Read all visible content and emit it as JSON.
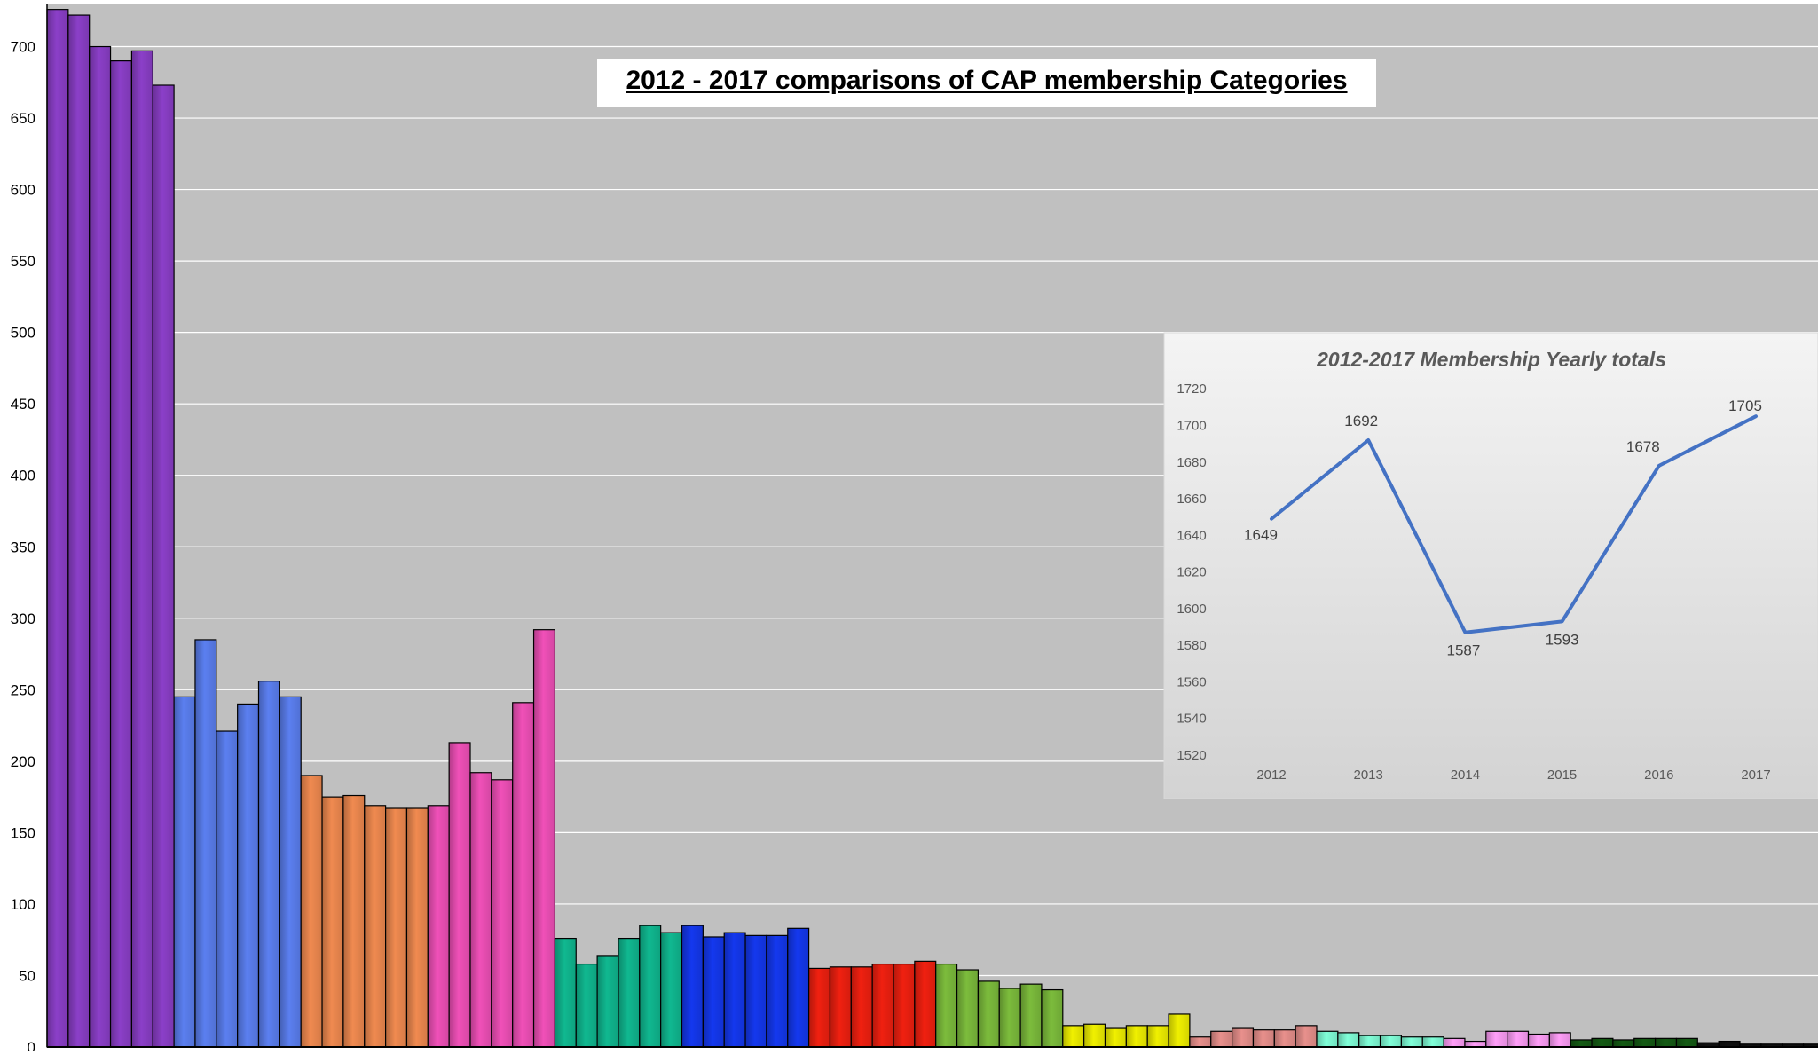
{
  "chart_data": [
    {
      "type": "bar",
      "title": "2012 - 2017 comparisons of CAP membership Categories",
      "xlabel": "",
      "ylabel": "",
      "ylim": [
        0,
        730
      ],
      "yticks": [
        0,
        50,
        100,
        150,
        200,
        250,
        300,
        350,
        400,
        450,
        500,
        550,
        600,
        650,
        700
      ],
      "grid": true,
      "groups": [
        {
          "color": "#8b3fc8",
          "values": [
            726,
            722,
            700,
            690,
            697,
            673
          ]
        },
        {
          "color": "#5b7ff0",
          "values": [
            245,
            285,
            221,
            240,
            256,
            245
          ]
        },
        {
          "color": "#f08a50",
          "values": [
            190,
            175,
            176,
            169,
            167,
            167
          ]
        },
        {
          "color": "#f050b8",
          "values": [
            169,
            213,
            192,
            187,
            241,
            292
          ]
        },
        {
          "color": "#10b890",
          "values": [
            76,
            58,
            64,
            76,
            85,
            80
          ]
        },
        {
          "color": "#1438ee",
          "values": [
            85,
            77,
            80,
            78,
            78,
            83
          ]
        },
        {
          "color": "#f02010",
          "values": [
            55,
            56,
            56,
            58,
            58,
            60
          ]
        },
        {
          "color": "#7cbc3c",
          "values": [
            58,
            54,
            46,
            41,
            44,
            40
          ]
        },
        {
          "color": "#f0f000",
          "values": [
            15,
            16,
            13,
            15,
            15,
            23
          ]
        },
        {
          "color": "#e8908c",
          "values": [
            7,
            11,
            13,
            12,
            12,
            15
          ]
        },
        {
          "color": "#80ffd8",
          "values": [
            11,
            10,
            8,
            8,
            7,
            7
          ]
        },
        {
          "color": "#ff9ef8",
          "values": [
            6,
            4,
            11,
            11,
            9,
            10
          ]
        },
        {
          "color": "#145a14",
          "values": [
            5,
            6,
            5,
            6,
            6,
            6
          ]
        },
        {
          "color": "#101010",
          "values": [
            3,
            4,
            2,
            2,
            2,
            2
          ]
        }
      ]
    },
    {
      "type": "line",
      "title": "2012-2017 Membership Yearly totals",
      "x": [
        "2012",
        "2013",
        "2014",
        "2015",
        "2016",
        "2017"
      ],
      "series": [
        {
          "values": [
            1649,
            1692,
            1587,
            1593,
            1678,
            1705
          ],
          "color": "#4472c4"
        }
      ],
      "ylim": [
        1520,
        1720
      ],
      "yticks": [
        1520,
        1540,
        1560,
        1580,
        1600,
        1620,
        1640,
        1660,
        1680,
        1700,
        1720
      ],
      "data_labels": true
    }
  ]
}
